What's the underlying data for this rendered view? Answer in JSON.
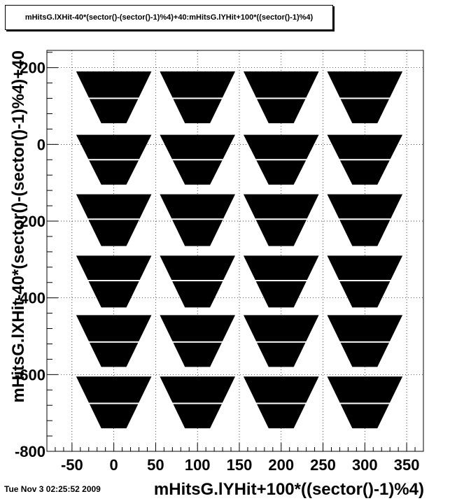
{
  "title": "mHitsG.lXHit-40*(sector()-(sector()-1)%4)+40:mHitsG.lYHit+100*((sector()-1)%4)",
  "footer_date": "Tue Nov  3 02:25:52 2009",
  "chart_data": {
    "type": "scatter",
    "title": "mHitsG.lXHit-40*(sector()-(sector()-1)%4)+40:mHitsG.lYHit+100*((sector()-1)%4)",
    "xlabel": "mHitsG.lYHit+100*((sector()-1)%4)",
    "ylabel": "mHitsG.lXHit-40*(sector()-(sector()-1)%4)+40",
    "xlim": [
      -80,
      370
    ],
    "ylim": [
      -800,
      245
    ],
    "xticks": [
      -50,
      0,
      50,
      100,
      150,
      200,
      250,
      300,
      350
    ],
    "xtick_labels": [
      "-50",
      "0",
      "50",
      "100",
      "150",
      "200",
      "250",
      "300",
      "350"
    ],
    "yticks": [
      -800,
      -600,
      -400,
      -200,
      0,
      200
    ],
    "ytick_labels": [
      "-800",
      "-600",
      "-400",
      "-200",
      "0",
      "200"
    ],
    "grid": true,
    "marker_color": "#000000",
    "columns": [
      {
        "x_center": 0,
        "x_top_left": -45,
        "x_top_right": 45,
        "x_bottom_left": -15,
        "x_bottom_right": 15
      },
      {
        "x_center": 100,
        "x_top_left": 55,
        "x_top_right": 145,
        "x_bottom_left": 85,
        "x_bottom_right": 115
      },
      {
        "x_center": 200,
        "x_top_left": 155,
        "x_top_right": 245,
        "x_bottom_left": 185,
        "x_bottom_right": 215
      },
      {
        "x_center": 300,
        "x_top_left": 255,
        "x_top_right": 345,
        "x_bottom_left": 285,
        "x_bottom_right": 315
      }
    ],
    "rows": [
      {
        "y_top": 190,
        "y_bottom": 55
      },
      {
        "y_top": 25,
        "y_bottom": -105
      },
      {
        "y_top": -130,
        "y_bottom": -265
      },
      {
        "y_top": -290,
        "y_bottom": -425
      },
      {
        "y_top": -445,
        "y_bottom": -580
      },
      {
        "y_top": -605,
        "y_bottom": -740
      }
    ],
    "gaps": [
      {
        "y": 120
      },
      {
        "y": -40
      },
      {
        "y": -195
      },
      {
        "y": -355
      },
      {
        "y": -515
      },
      {
        "y": -675
      }
    ]
  }
}
